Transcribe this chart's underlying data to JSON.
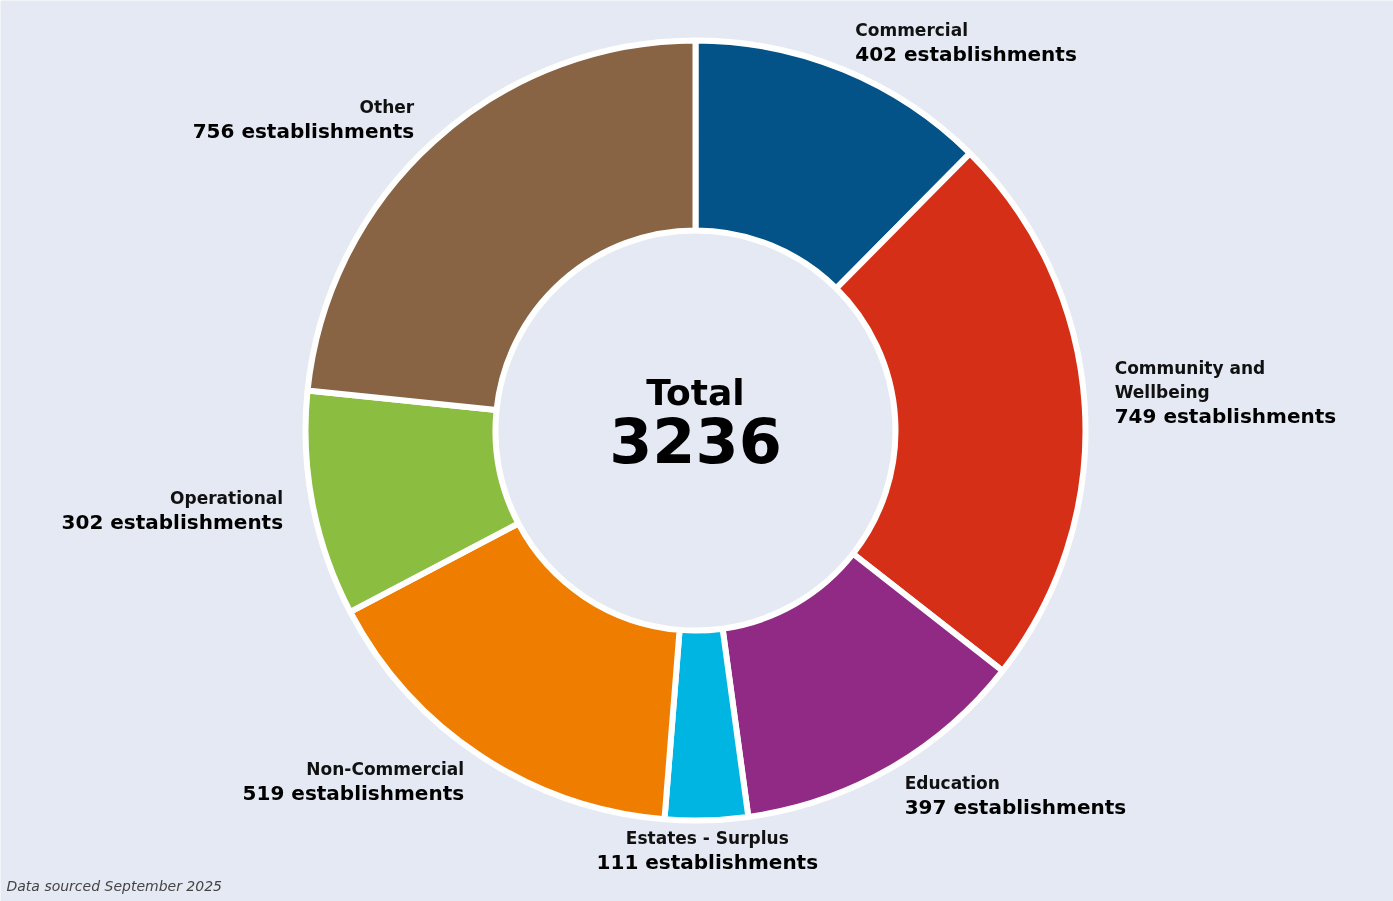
{
  "chart_data": {
    "type": "donut",
    "categories": [
      "Commercial",
      "Community and Wellbeing",
      "Education",
      "Estates - Surplus",
      "Non-Commercial",
      "Operational",
      "Other"
    ],
    "values": [
      402,
      749,
      397,
      111,
      519,
      302,
      756
    ],
    "colors": [
      "#035388",
      "#d62f18",
      "#912a84",
      "#00b5e2",
      "#ef7d00",
      "#8abd40",
      "#886445"
    ],
    "value_labels": [
      "402 establishments",
      "749 establishments",
      "397 establishments",
      "111 establishments",
      "519 establishments",
      "302 establishments",
      "756 establishments"
    ],
    "totals": [
      "3236"
    ],
    "annotations": [
      "Total",
      "Data sourced September 2025"
    ]
  }
}
